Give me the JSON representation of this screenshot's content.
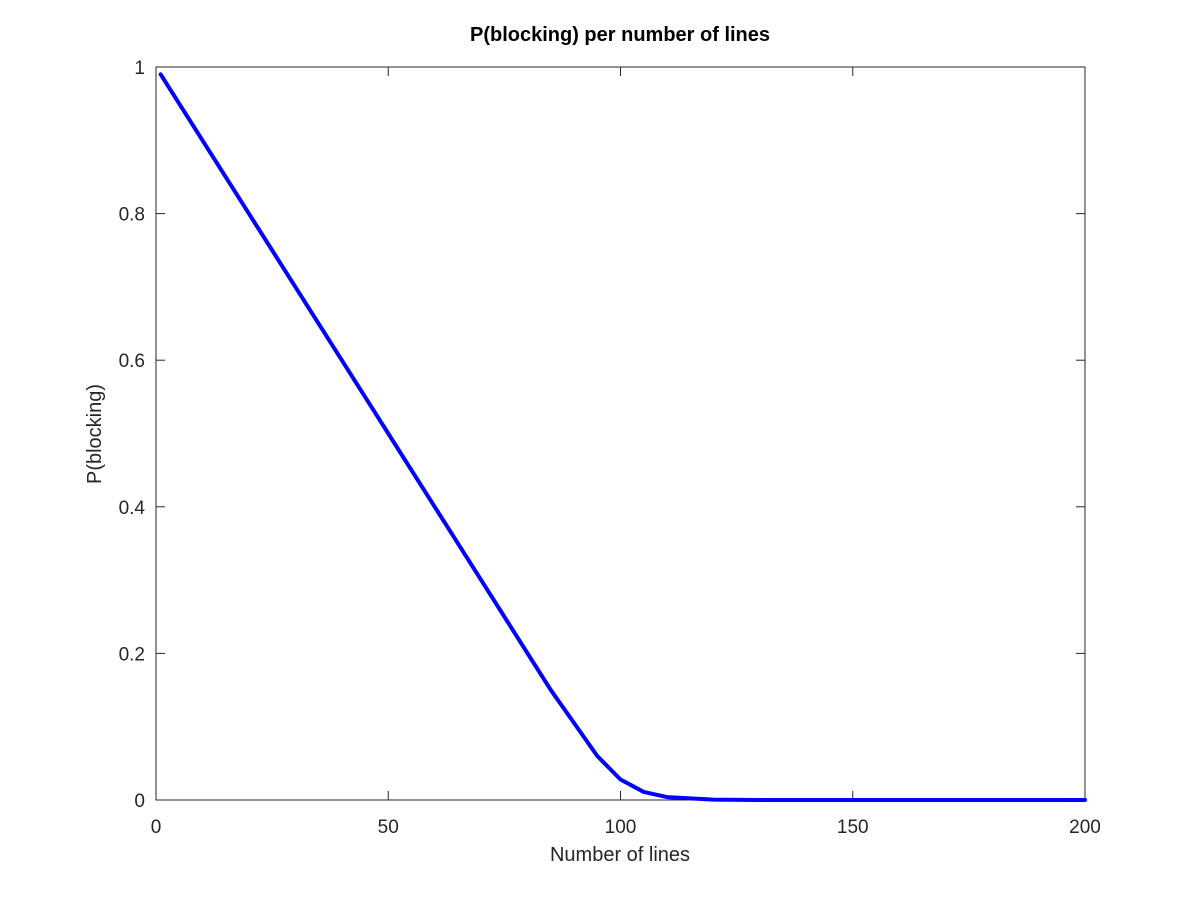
{
  "chart_data": {
    "type": "line",
    "title": "P(blocking) per number of lines",
    "xlabel": "Number of lines",
    "ylabel": "P(blocking)",
    "xlim": [
      0,
      200
    ],
    "ylim": [
      0,
      1
    ],
    "xticks": [
      0,
      50,
      100,
      150,
      200
    ],
    "xtick_labels": [
      "0",
      "50",
      "100",
      "150",
      "200"
    ],
    "yticks": [
      0,
      0.2,
      0.4,
      0.6,
      0.8,
      1
    ],
    "ytick_labels": [
      "0",
      "0.2",
      "0.4",
      "0.6",
      "0.8",
      "1"
    ],
    "grid": false,
    "legend": "none",
    "series": [
      {
        "color": "#0000ff",
        "x": [
          1,
          5,
          10,
          15,
          20,
          25,
          30,
          35,
          40,
          45,
          50,
          55,
          60,
          65,
          70,
          75,
          80,
          85,
          90,
          95,
          100,
          105,
          110,
          120,
          130,
          140,
          150,
          160,
          170,
          180,
          190,
          200
        ],
        "y": [
          0.99,
          0.95,
          0.9,
          0.85,
          0.8,
          0.75,
          0.7,
          0.65,
          0.6,
          0.55,
          0.5,
          0.45,
          0.4,
          0.35,
          0.3,
          0.25,
          0.2,
          0.15,
          0.105,
          0.06,
          0.028,
          0.011,
          0.004,
          0.0005,
          3e-05,
          1e-06,
          0,
          0,
          0,
          0,
          0,
          0
        ]
      }
    ]
  }
}
